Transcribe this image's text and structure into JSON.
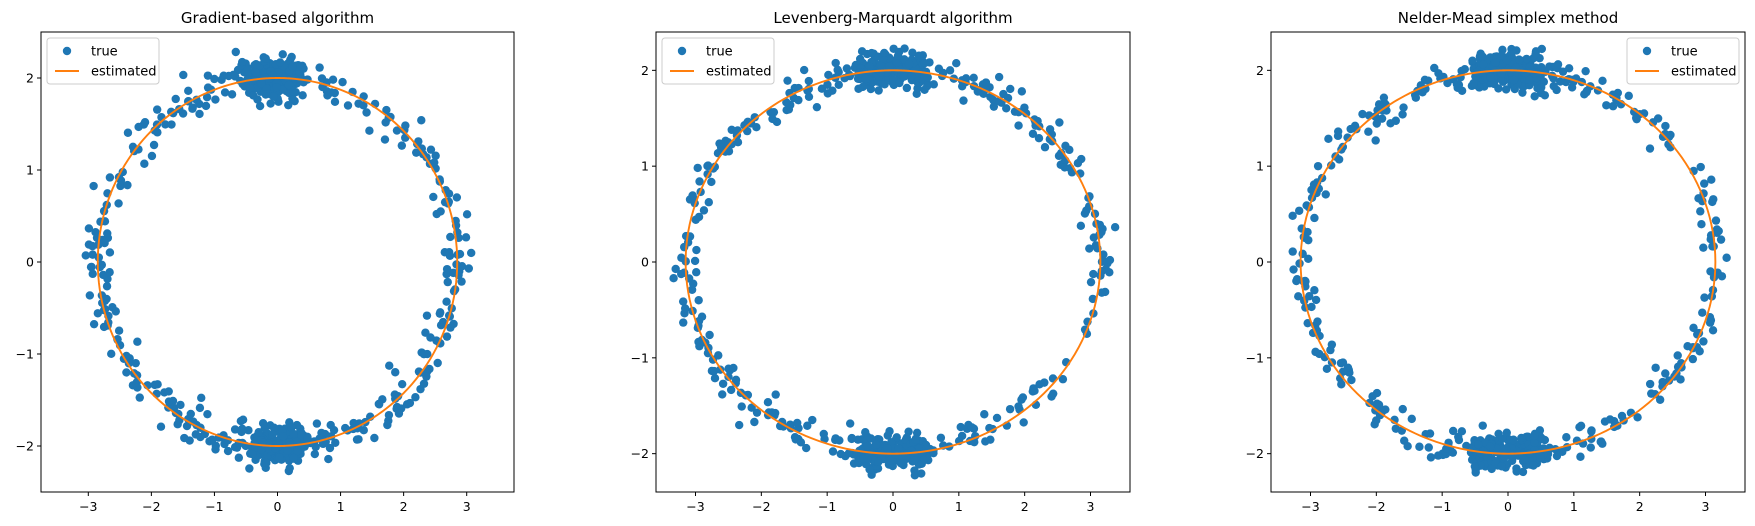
{
  "chart_data": [
    {
      "type": "scatter",
      "title": "Gradient-based algorithm",
      "xlim": [
        -3.75,
        3.75
      ],
      "ylim": [
        -2.5,
        2.5
      ],
      "xticks": [
        -3,
        -2,
        -1,
        0,
        1,
        2,
        3
      ],
      "yticks": [
        -2,
        -1,
        0,
        1,
        2
      ],
      "legend_position": "upper-left",
      "grid": false,
      "series": [
        {
          "name": "true",
          "kind": "scatter",
          "color": "#1f77b4"
        },
        {
          "name": "estimated",
          "kind": "line",
          "color": "#ff7f0e"
        }
      ],
      "curve_params": {
        "a": 2.85,
        "b": 2.0,
        "tilt": 0.7,
        "phase": 0.7
      },
      "scatter_params": {
        "noise": 0.11,
        "count": 700,
        "seed": 11
      }
    },
    {
      "type": "scatter",
      "title": "Levenberg-Marquardt algorithm",
      "xlim": [
        -3.6,
        3.6
      ],
      "ylim": [
        -2.4,
        2.4
      ],
      "xticks": [
        -3,
        -2,
        -1,
        0,
        1,
        2,
        3
      ],
      "yticks": [
        -2,
        -1,
        0,
        1,
        2
      ],
      "legend_position": "upper-left",
      "grid": false,
      "series": [
        {
          "name": "true",
          "kind": "scatter",
          "color": "#1f77b4"
        },
        {
          "name": "estimated",
          "kind": "line",
          "color": "#ff7f0e"
        }
      ],
      "curve_params": {
        "a": 3.15,
        "b": 2.0,
        "tilt": 0.75,
        "phase": 0.75
      },
      "scatter_params": {
        "noise": 0.09,
        "count": 700,
        "seed": 23
      }
    },
    {
      "type": "scatter",
      "title": "Nelder-Mead simplex method",
      "xlim": [
        -3.6,
        3.6
      ],
      "ylim": [
        -2.4,
        2.4
      ],
      "xticks": [
        -3,
        -2,
        -1,
        0,
        1,
        2,
        3
      ],
      "yticks": [
        -2,
        -1,
        0,
        1,
        2
      ],
      "legend_position": "upper-right",
      "grid": false,
      "series": [
        {
          "name": "true",
          "kind": "scatter",
          "color": "#1f77b4"
        },
        {
          "name": "estimated",
          "kind": "line",
          "color": "#ff7f0e"
        }
      ],
      "curve_params": {
        "a": 3.15,
        "b": 2.0,
        "tilt": 0.75,
        "phase": 0.75
      },
      "scatter_params": {
        "noise": 0.09,
        "count": 700,
        "seed": 37
      }
    }
  ]
}
